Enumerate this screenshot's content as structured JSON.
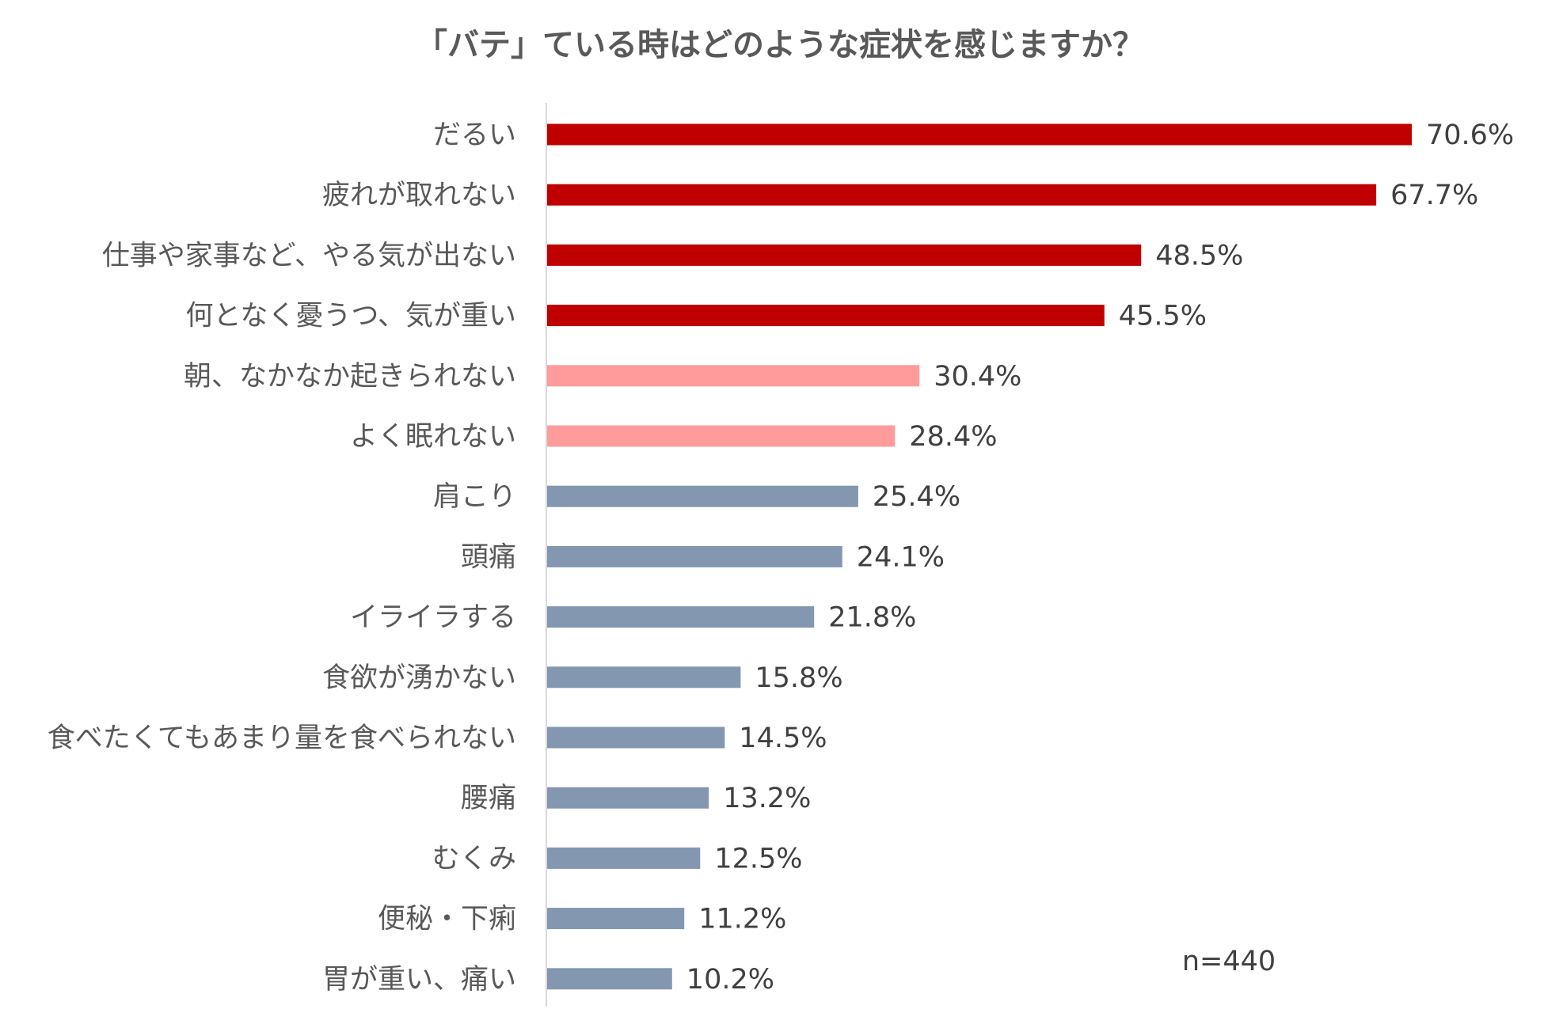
{
  "chart_data": {
    "type": "bar",
    "orientation": "horizontal",
    "title": "「バテ」ている時はどのような症状を感じますか？",
    "note": "n=440",
    "value_suffix": "%",
    "grid": false,
    "legend": "none",
    "xlim": [
      0,
      80
    ],
    "categories": [
      "だるい",
      "疲れが取れない",
      "仕事や家事など、やる気が出ない",
      "何となく憂うつ、気が重い",
      "朝、なかなか起きられない",
      "よく眠れない",
      "肩こり",
      "頭痛",
      "イライラする",
      "食欲が湧かない",
      "食べたくてもあまり量を食べられない",
      "腰痛",
      "むくみ",
      "便秘・下痢",
      "胃が重い、痛い"
    ],
    "values": [
      70.6,
      67.7,
      48.5,
      45.5,
      30.4,
      28.4,
      25.4,
      24.1,
      21.8,
      15.8,
      14.5,
      13.2,
      12.5,
      11.2,
      10.2
    ],
    "value_labels": [
      "70.6%",
      "67.7%",
      "48.5%",
      "45.5%",
      "30.4%",
      "28.4%",
      "25.4%",
      "24.1%",
      "21.8%",
      "15.8%",
      "14.5%",
      "13.2%",
      "12.5%",
      "11.2%",
      "10.2%"
    ],
    "bar_colors": [
      "#c00000",
      "#c00000",
      "#c00000",
      "#c00000",
      "#ff9b9b",
      "#ff9b9b",
      "#8497b0",
      "#8497b0",
      "#8497b0",
      "#8497b0",
      "#8497b0",
      "#8497b0",
      "#8497b0",
      "#8497b0",
      "#8497b0"
    ],
    "axis_color": "#d9d9d9"
  }
}
